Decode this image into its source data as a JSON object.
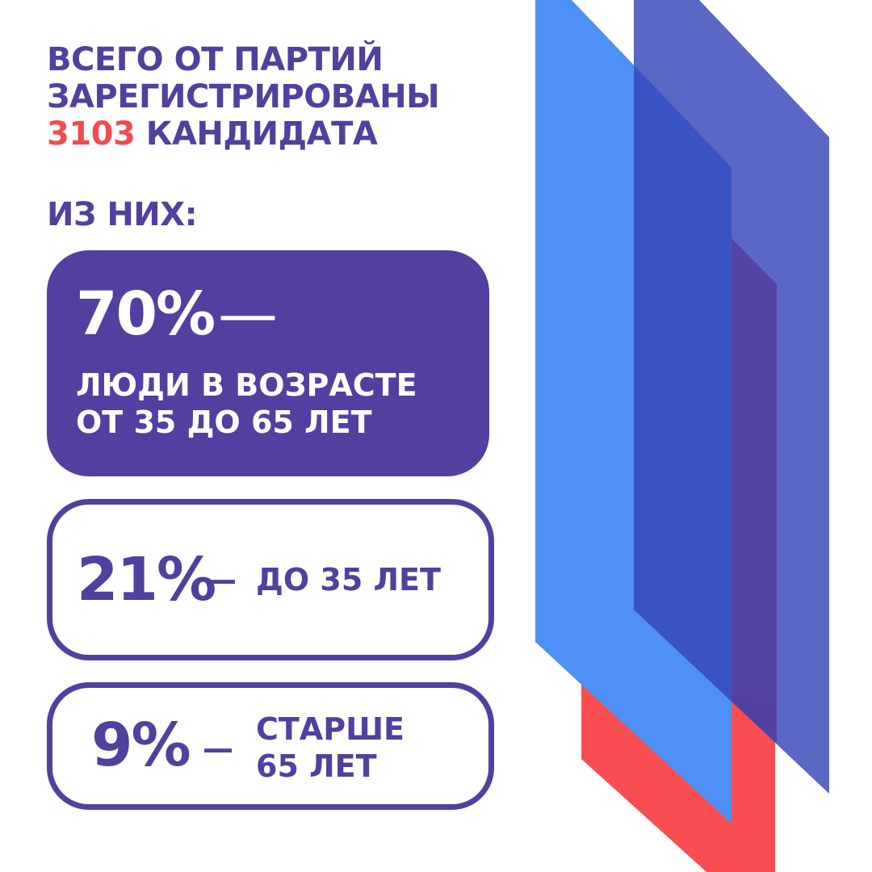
{
  "header": {
    "lines": [
      "ВСЕГО ОТ ПАРТИЙ",
      "ЗАРЕГИСТРИРОВАНЫ"
    ],
    "number": "3103",
    "rest": "КАНДИДАТА"
  },
  "subheader": "ИЗ НИХ:",
  "cards": [
    {
      "percent": "70%",
      "dash": "—",
      "lines": [
        "ЛЮДИ В ВОЗРАСТЕ",
        "ОТ 35 ДО 65 ЛЕТ"
      ]
    },
    {
      "percent": "21%",
      "dash": "—",
      "lines": [
        "ДО 35 ЛЕТ"
      ]
    },
    {
      "percent": "9%",
      "dash": "—",
      "lines": [
        "СТАРШЕ",
        "65 ЛЕТ"
      ]
    }
  ]
}
